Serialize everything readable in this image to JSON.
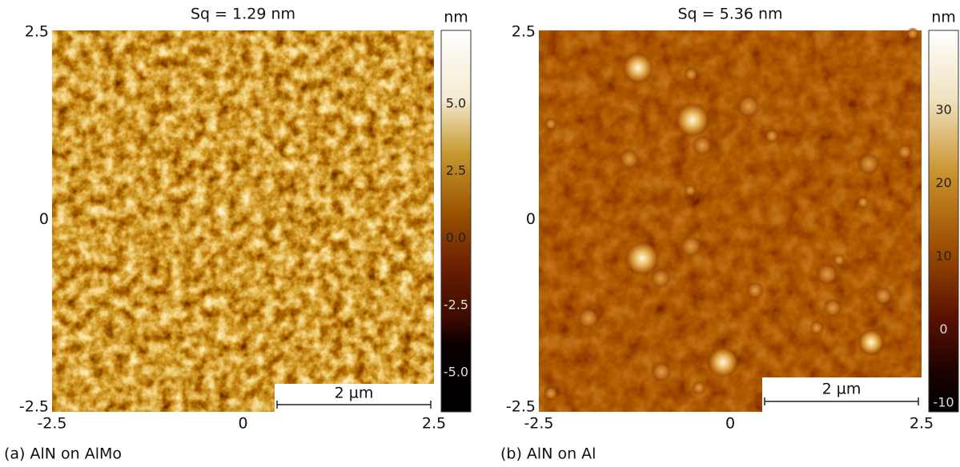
{
  "panels": [
    {
      "title": "Sq = 1.29 nm",
      "unit": "nm",
      "x_ticks": [
        "-2.5",
        "0",
        "2.5"
      ],
      "y_ticks": [
        "2.5",
        "0",
        "-2.5"
      ],
      "colorbar_ticks": [
        "5.0",
        "2.5",
        "0.0",
        "-2.5",
        "-5.0"
      ],
      "scale_bar": "2 µm",
      "caption": "(a) AlN on AlMo"
    },
    {
      "title": "Sq = 5.36 nm",
      "unit": "nm",
      "x_ticks": [
        "-2.5",
        "0",
        "2.5"
      ],
      "y_ticks": [
        "2.5",
        "0",
        "-2.5"
      ],
      "colorbar_ticks": [
        "30",
        "20",
        "10",
        "0",
        "-10"
      ],
      "scale_bar": "2 µm",
      "caption": "(b) AlN on Al"
    }
  ]
}
